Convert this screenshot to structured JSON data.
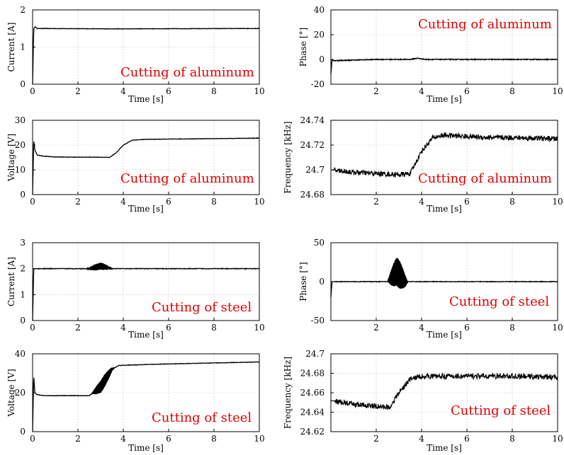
{
  "colors": {
    "trace": "#000000",
    "annotation": "#e00000"
  },
  "chart_data": [
    {
      "type": "line",
      "title": "",
      "annotation": "Cutting of aluminum",
      "xlabel": "Time [s]",
      "ylabel": "Current [A]",
      "xlim": [
        0,
        10
      ],
      "ylim": [
        0,
        2
      ],
      "xticks": [
        "0",
        "2",
        "4",
        "6",
        "8",
        "10"
      ],
      "yticks": [
        "0",
        "1",
        "2"
      ],
      "grid": true,
      "series": [
        {
          "x": [
            0,
            0.05,
            0.12,
            0.2,
            3.5,
            10
          ],
          "y": [
            0,
            1.5,
            1.55,
            1.5,
            1.49,
            1.5
          ]
        }
      ]
    },
    {
      "type": "line",
      "title": "",
      "annotation": "Cutting of aluminum",
      "xlabel": "Time [s]",
      "ylabel": "Phase [°]",
      "xlim": [
        0,
        10
      ],
      "ylim": [
        -20,
        40
      ],
      "xticks": [
        "2",
        "4",
        "6",
        "8",
        "10"
      ],
      "yticks": [
        "-20",
        "0",
        "20",
        "40"
      ],
      "grid": true,
      "series": [
        {
          "x": [
            0,
            0.05,
            0.1,
            2,
            3.5,
            3.8,
            4.2,
            10
          ],
          "y": [
            -12,
            0,
            -1,
            0,
            0,
            1,
            0,
            0
          ]
        }
      ]
    },
    {
      "type": "line",
      "title": "",
      "annotation": "Cutting of aluminum",
      "xlabel": "Time [s]",
      "ylabel": "Voltage [V]",
      "xlim": [
        0,
        10
      ],
      "ylim": [
        0,
        30
      ],
      "xticks": [
        "0",
        "2",
        "4",
        "6",
        "8",
        "10"
      ],
      "yticks": [
        "0",
        "10",
        "20",
        "30"
      ],
      "grid": true,
      "series": [
        {
          "x": [
            0,
            0.05,
            0.1,
            0.2,
            0.5,
            1,
            2,
            3,
            3.4,
            3.7,
            4,
            4.4,
            5,
            6,
            8,
            10
          ],
          "y": [
            0,
            22,
            18,
            16,
            15.5,
            15.2,
            15.1,
            15.1,
            15,
            17,
            20,
            22,
            22.3,
            22.4,
            22.6,
            22.8
          ]
        }
      ]
    },
    {
      "type": "line",
      "title": "",
      "annotation": "Cutting of aluminum",
      "xlabel": "Time [s]",
      "ylabel": "Frequency [kHz]",
      "xlim": [
        0,
        10
      ],
      "ylim": [
        24.68,
        24.74
      ],
      "xticks": [
        "2",
        "4",
        "6",
        "8",
        "10"
      ],
      "yticks": [
        "24.68",
        "24.7",
        "24.72",
        "24.74"
      ],
      "grid": true,
      "series": [
        {
          "x": [
            0,
            1,
            2,
            3,
            3.5,
            4,
            4.5,
            5,
            6,
            7,
            8,
            10
          ],
          "y": [
            24.7,
            24.698,
            24.697,
            24.696,
            24.697,
            24.715,
            24.726,
            24.728,
            24.727,
            24.726,
            24.726,
            24.725
          ]
        }
      ]
    },
    {
      "type": "line",
      "title": "",
      "annotation": "Cutting of steel",
      "xlabel": "Time [s]",
      "ylabel": "Current [A]",
      "xlim": [
        0,
        10
      ],
      "ylim": [
        0,
        3
      ],
      "xticks": [
        "0",
        "2",
        "4",
        "6",
        "8",
        "10"
      ],
      "yticks": [
        "0",
        "1",
        "2",
        "3"
      ],
      "grid": true,
      "series": [
        {
          "x": [
            0,
            0.05,
            0.1,
            2.5,
            3,
            3.5,
            10
          ],
          "y": [
            0,
            2,
            2,
            2,
            2.1,
            2,
            2
          ]
        }
      ]
    },
    {
      "type": "line",
      "title": "",
      "annotation": "Cutting of steel",
      "xlabel": "Time [s]",
      "ylabel": "Phase [°]",
      "xlim": [
        0,
        10
      ],
      "ylim": [
        -50,
        50
      ],
      "xticks": [
        "2",
        "4",
        "6",
        "8",
        "10"
      ],
      "yticks": [
        "-50",
        "0",
        "50"
      ],
      "grid": true,
      "series": [
        {
          "x": [
            0,
            0.05,
            0.1,
            2.5,
            2.9,
            3.3,
            10
          ],
          "y": [
            -20,
            0,
            0,
            0,
            13,
            0,
            0
          ]
        }
      ]
    },
    {
      "type": "line",
      "title": "",
      "annotation": "Cutting of steel",
      "xlabel": "Time [s]",
      "ylabel": "Voltage [V]",
      "xlim": [
        0,
        10
      ],
      "ylim": [
        0,
        40
      ],
      "xticks": [
        "0",
        "2",
        "4",
        "6",
        "8",
        "10"
      ],
      "yticks": [
        "0",
        "20",
        "40"
      ],
      "grid": true,
      "series": [
        {
          "x": [
            0,
            0.05,
            0.1,
            0.2,
            0.5,
            1,
            2,
            2.5,
            3,
            3.5,
            3.8,
            5,
            6,
            8,
            10
          ],
          "y": [
            0,
            29,
            20,
            19,
            18.5,
            18.5,
            18.5,
            18.5,
            23,
            32,
            34,
            34.5,
            34.8,
            35.3,
            35.8
          ]
        }
      ]
    },
    {
      "type": "line",
      "title": "",
      "annotation": "Cutting of steel",
      "xlabel": "Time [s]",
      "ylabel": "Frequency [kHz]",
      "xlim": [
        0,
        10
      ],
      "ylim": [
        24.62,
        24.7
      ],
      "xticks": [
        "2",
        "4",
        "6",
        "8",
        "10"
      ],
      "yticks": [
        "24.62",
        "24.64",
        "24.66",
        "24.68",
        "24.7"
      ],
      "grid": true,
      "series": [
        {
          "x": [
            0,
            1,
            2,
            2.6,
            3,
            3.5,
            4,
            5,
            6,
            8,
            10
          ],
          "y": [
            24.652,
            24.648,
            24.646,
            24.645,
            24.66,
            24.674,
            24.677,
            24.677,
            24.677,
            24.677,
            24.676
          ]
        }
      ]
    }
  ]
}
